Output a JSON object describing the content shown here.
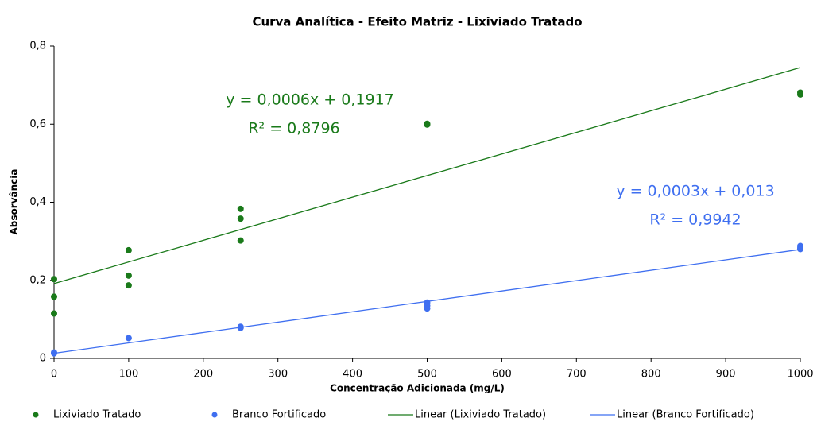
{
  "chart_data": {
    "type": "scatter",
    "title": "Curva Analítica - Efeito Matriz - Lixiviado Tratado",
    "x_label": "Concentração Adicionada (mg/L)",
    "y_label": "Absorvância",
    "xlim": [
      0,
      1000
    ],
    "xticks": [
      0,
      100,
      200,
      300,
      400,
      500,
      600,
      700,
      800,
      900,
      1000
    ],
    "ylim": [
      0,
      0.8
    ],
    "yticks": [
      0,
      {
        "value": 0.2,
        "label": "0,2"
      },
      {
        "value": 0.4,
        "label": "0,4"
      },
      {
        "value": 0.6,
        "label": "0,6"
      },
      {
        "value": 0.8,
        "label": "0,8"
      }
    ],
    "series": [
      {
        "name": "Lixiviado Tratado",
        "mode": "markers",
        "color": "#1a7a1a",
        "x": [
          0,
          0,
          0,
          100,
          100,
          100,
          250,
          250,
          250,
          500,
          500,
          1000,
          1000
        ],
        "values": [
          0.203,
          0.158,
          0.115,
          0.277,
          0.212,
          0.187,
          0.383,
          0.358,
          0.302,
          0.601,
          0.599,
          0.681,
          0.676
        ]
      },
      {
        "name": "Branco Fortificado",
        "mode": "markers",
        "color": "#3f6ff0",
        "x": [
          0,
          0,
          100,
          250,
          250,
          500,
          500,
          500,
          1000,
          1000,
          1000
        ],
        "values": [
          0.013,
          0.015,
          0.052,
          0.078,
          0.081,
          0.143,
          0.135,
          0.128,
          0.288,
          0.283,
          0.28
        ]
      },
      {
        "name": "Linear (Lixiviado Tratado)",
        "mode": "line",
        "color": "#1a7a1a",
        "x": [
          0,
          1000
        ],
        "values": [
          0.1917,
          0.745
        ]
      },
      {
        "name": "Linear (Branco Fortificado)",
        "mode": "line",
        "color": "#3f6ff0",
        "x": [
          0,
          1000
        ],
        "values": [
          0.013,
          0.279
        ]
      }
    ],
    "annotations": [
      {
        "text": "y = 0,0006x + 0,1917",
        "color": "#1a7a1a"
      },
      {
        "text": "R² = 0,8796",
        "color": "#1a7a1a"
      },
      {
        "text": "y = 0,0003x + 0,013",
        "color": "#3f6ff0"
      },
      {
        "text": "R² = 0,9942",
        "color": "#3f6ff0"
      }
    ]
  }
}
